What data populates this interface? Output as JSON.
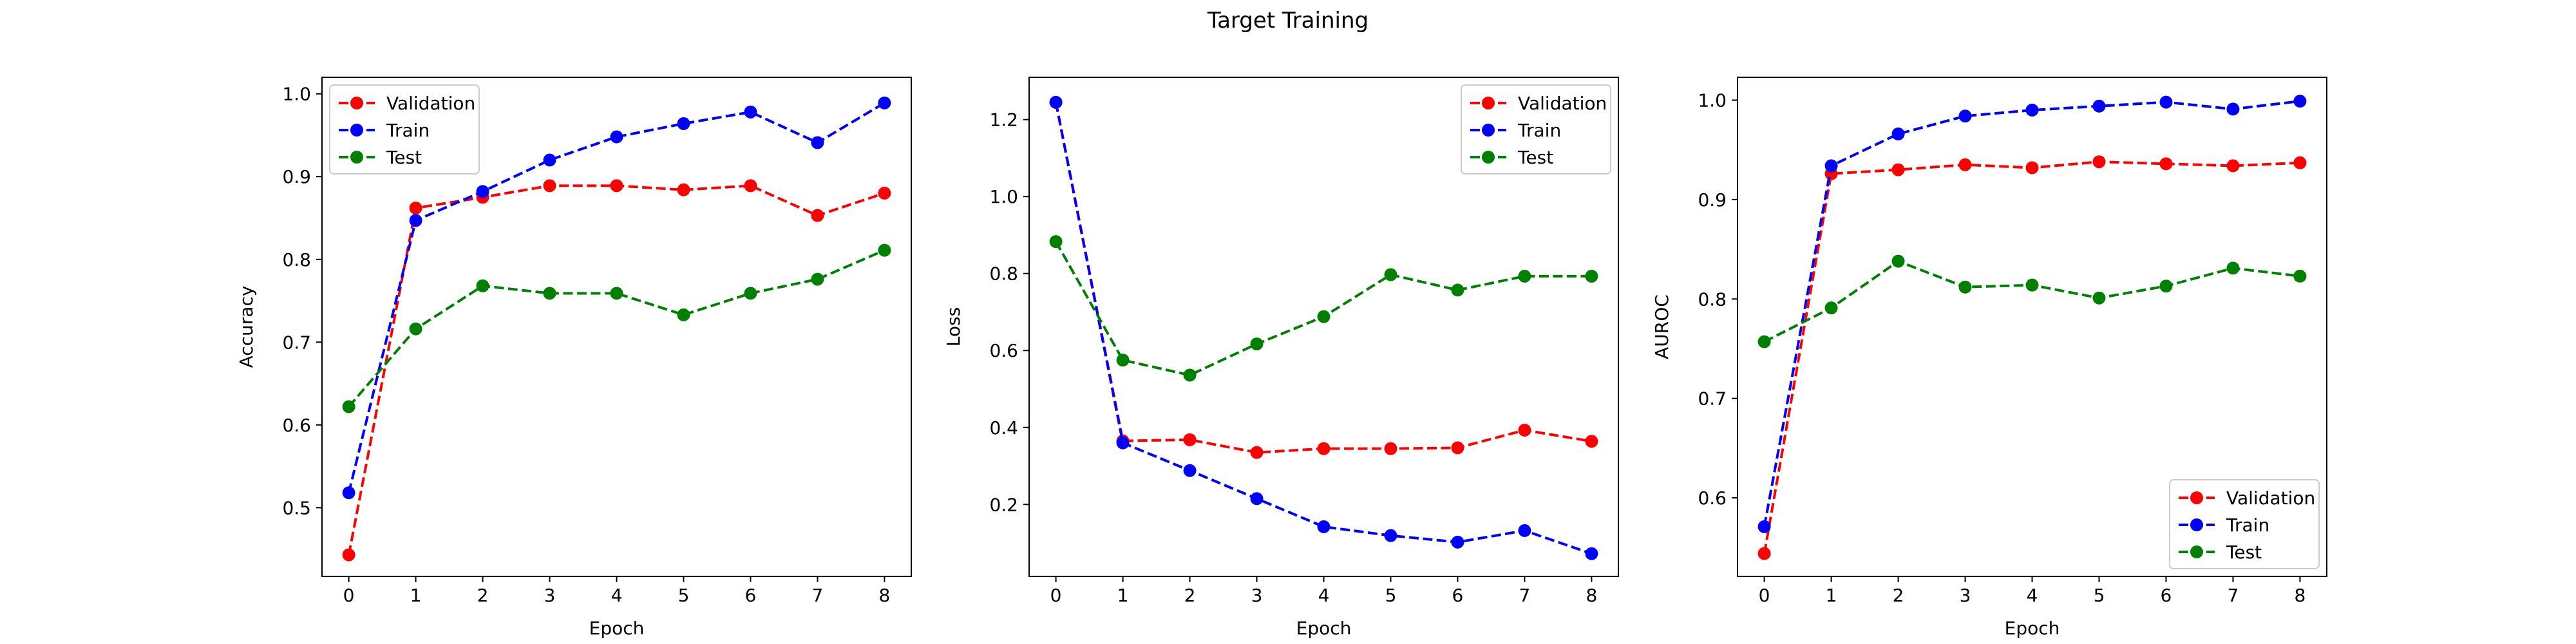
{
  "figure": {
    "title": "Target Training"
  },
  "chart_data": [
    {
      "type": "line",
      "xlabel": "Epoch",
      "ylabel": "Accuracy",
      "x": [
        0,
        1,
        2,
        3,
        4,
        5,
        6,
        7,
        8
      ],
      "xlim": [
        -0.4,
        8.4
      ],
      "ylim": [
        0.417,
        1.02
      ],
      "yticks": [
        0.5,
        0.6,
        0.7,
        0.8,
        0.9,
        1.0
      ],
      "ytick_labels": [
        "0.5",
        "0.6",
        "0.7",
        "0.8",
        "0.9",
        "1.0"
      ],
      "legend_position": "top-left",
      "series": [
        {
          "name": "Validation",
          "color": "#ff0000",
          "values": [
            0.443,
            0.862,
            0.875,
            0.889,
            0.889,
            0.884,
            0.889,
            0.853,
            0.88
          ]
        },
        {
          "name": "Train",
          "color": "#0000ff",
          "values": [
            0.518,
            0.847,
            0.882,
            0.92,
            0.948,
            0.964,
            0.978,
            0.941,
            0.989
          ]
        },
        {
          "name": "Test",
          "color": "#008000",
          "values": [
            0.622,
            0.716,
            0.768,
            0.759,
            0.759,
            0.733,
            0.759,
            0.776,
            0.811
          ]
        }
      ]
    },
    {
      "type": "line",
      "xlabel": "Epoch",
      "ylabel": "Loss",
      "x": [
        0,
        1,
        2,
        3,
        4,
        5,
        6,
        7,
        8
      ],
      "xlim": [
        -0.4,
        8.4
      ],
      "ylim": [
        0.013,
        1.31
      ],
      "yticks": [
        0.2,
        0.4,
        0.6,
        0.8,
        1.0,
        1.2
      ],
      "ytick_labels": [
        "0.2",
        "0.4",
        "0.6",
        "0.8",
        "1.0",
        "1.2"
      ],
      "legend_position": "top-right",
      "series": [
        {
          "name": "Validation",
          "color": "#ff0000",
          "values": [
            1.245,
            0.365,
            0.368,
            0.335,
            0.345,
            0.345,
            0.347,
            0.393,
            0.364
          ]
        },
        {
          "name": "Train",
          "color": "#0000ff",
          "values": [
            1.245,
            0.36,
            0.288,
            0.215,
            0.142,
            0.119,
            0.102,
            0.132,
            0.072
          ]
        },
        {
          "name": "Test",
          "color": "#008000",
          "values": [
            0.883,
            0.575,
            0.536,
            0.617,
            0.688,
            0.797,
            0.757,
            0.793,
            0.793
          ]
        }
      ]
    },
    {
      "type": "line",
      "xlabel": "Epoch",
      "ylabel": "AUROC",
      "x": [
        0,
        1,
        2,
        3,
        4,
        5,
        6,
        7,
        8
      ],
      "xlim": [
        -0.4,
        8.4
      ],
      "ylim": [
        0.521,
        1.023
      ],
      "yticks": [
        0.6,
        0.7,
        0.8,
        0.9,
        1.0
      ],
      "ytick_labels": [
        "0.6",
        "0.7",
        "0.8",
        "0.9",
        "1.0"
      ],
      "legend_position": "bottom-right",
      "series": [
        {
          "name": "Validation",
          "color": "#ff0000",
          "values": [
            0.544,
            0.926,
            0.93,
            0.935,
            0.932,
            0.938,
            0.936,
            0.934,
            0.937
          ]
        },
        {
          "name": "Train",
          "color": "#0000ff",
          "values": [
            0.571,
            0.934,
            0.966,
            0.984,
            0.99,
            0.994,
            0.998,
            0.991,
            0.999
          ]
        },
        {
          "name": "Test",
          "color": "#008000",
          "values": [
            0.757,
            0.791,
            0.838,
            0.812,
            0.814,
            0.801,
            0.813,
            0.831,
            0.823
          ]
        }
      ]
    }
  ]
}
